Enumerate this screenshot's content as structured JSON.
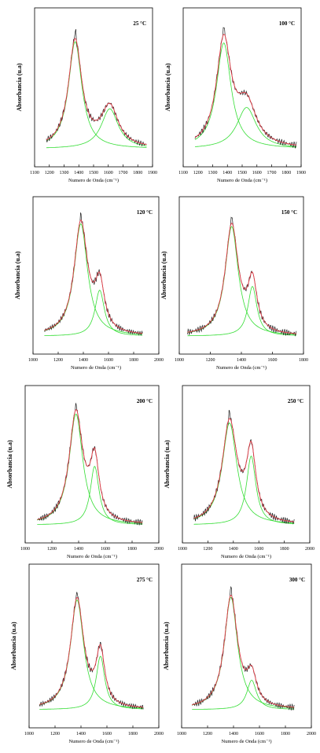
{
  "colors": {
    "measured": "#222222",
    "fit": "#e8404a",
    "component": "#33dd33",
    "axis": "#000000"
  },
  "chart_data": [
    {
      "type": "line",
      "temperature": "25 °C",
      "xlabel": "Numero de Onda (cm⁻¹)",
      "ylabel": "Absorbancia (u.a)",
      "xlim": [
        1100,
        1900
      ],
      "xticks": [
        "1100",
        "1200",
        "1300",
        "1400",
        "1500",
        "1600",
        "1700",
        "1800",
        "1900"
      ],
      "range": [
        1180,
        1860
      ],
      "peaks": [
        {
          "center": 1375,
          "height": 0.83,
          "width": 55
        },
        {
          "center": 1610,
          "height": 0.31,
          "width": 70
        }
      ]
    },
    {
      "type": "line",
      "temperature": "100 °C",
      "xlabel": "Numero de Onda (cm⁻¹)",
      "ylabel": "Absorbancia (u.a)",
      "xlim": [
        1100,
        1900
      ],
      "xticks": [
        "1100",
        "1200",
        "1300",
        "1400",
        "1500",
        "1600",
        "1700",
        "1800",
        "1900"
      ],
      "range": [
        1180,
        1870
      ],
      "peaks": [
        {
          "center": 1375,
          "height": 0.82,
          "width": 60
        },
        {
          "center": 1530,
          "height": 0.32,
          "width": 80
        }
      ]
    },
    {
      "type": "line",
      "temperature": "120 °C",
      "xlabel": "Numero de Onda (cm⁻¹)",
      "ylabel": "Absorbancia (u.a)",
      "xlim": [
        1000,
        2000
      ],
      "xticks": [
        "1000",
        "1200",
        "1400",
        "1600",
        "1800",
        "2000"
      ],
      "range": [
        1090,
        1870
      ],
      "peaks": [
        {
          "center": 1380,
          "height": 0.88,
          "width": 65
        },
        {
          "center": 1530,
          "height": 0.36,
          "width": 45
        }
      ]
    },
    {
      "type": "line",
      "temperature": "150 °C",
      "xlabel": "Numero de Onda (cm⁻¹)",
      "ylabel": "Absorbancia (u.a)",
      "xlim": [
        1000,
        1900
      ],
      "xticks": [
        "1000",
        "1200",
        "1400",
        "1600",
        "1800"
      ],
      "range": [
        1060,
        1850
      ],
      "peaks": [
        {
          "center": 1380,
          "height": 0.86,
          "width": 58
        },
        {
          "center": 1530,
          "height": 0.39,
          "width": 40
        }
      ]
    },
    {
      "type": "line",
      "temperature": "200 °C",
      "xlabel": "Numero de Onda (cm⁻¹)",
      "ylabel": "Absorbancia (u.a)",
      "xlim": [
        1000,
        2000
      ],
      "xticks": [
        "1000",
        "1200",
        "1400",
        "1600",
        "1800",
        "2000"
      ],
      "range": [
        1090,
        1880
      ],
      "peaks": [
        {
          "center": 1380,
          "height": 0.87,
          "width": 62
        },
        {
          "center": 1520,
          "height": 0.46,
          "width": 40
        }
      ]
    },
    {
      "type": "line",
      "temperature": "250 °C",
      "xlabel": "Numero de Onda (cm⁻¹)",
      "ylabel": "Absorbancia (u.a)",
      "xlim": [
        1000,
        2000
      ],
      "xticks": [
        "1000",
        "1200",
        "1400",
        "1600",
        "1800",
        "2000"
      ],
      "range": [
        1090,
        1880
      ],
      "peaks": [
        {
          "center": 1370,
          "height": 0.8,
          "width": 70
        },
        {
          "center": 1540,
          "height": 0.54,
          "width": 45
        }
      ]
    },
    {
      "type": "line",
      "temperature": "275 °C",
      "xlabel": "Numero de Onda (cm⁻¹)",
      "ylabel": "Absorbancia (u.a)",
      "xlim": [
        1000,
        2000
      ],
      "xticks": [
        "1000",
        "1200",
        "1400",
        "1600",
        "1800",
        "2000"
      ],
      "range": [
        1080,
        1880
      ],
      "peaks": [
        {
          "center": 1370,
          "height": 0.82,
          "width": 62
        },
        {
          "center": 1550,
          "height": 0.4,
          "width": 40
        }
      ]
    },
    {
      "type": "line",
      "temperature": "300 °C",
      "xlabel": "Numero de Onda (cm⁻¹)",
      "ylabel": "Absorbancia (u.a)",
      "xlim": [
        1000,
        2000
      ],
      "xticks": [
        "1000",
        "1200",
        "1400",
        "1600",
        "1800",
        "2000"
      ],
      "range": [
        1080,
        1870
      ],
      "peaks": [
        {
          "center": 1380,
          "height": 0.84,
          "width": 62
        },
        {
          "center": 1540,
          "height": 0.22,
          "width": 45
        }
      ]
    }
  ]
}
